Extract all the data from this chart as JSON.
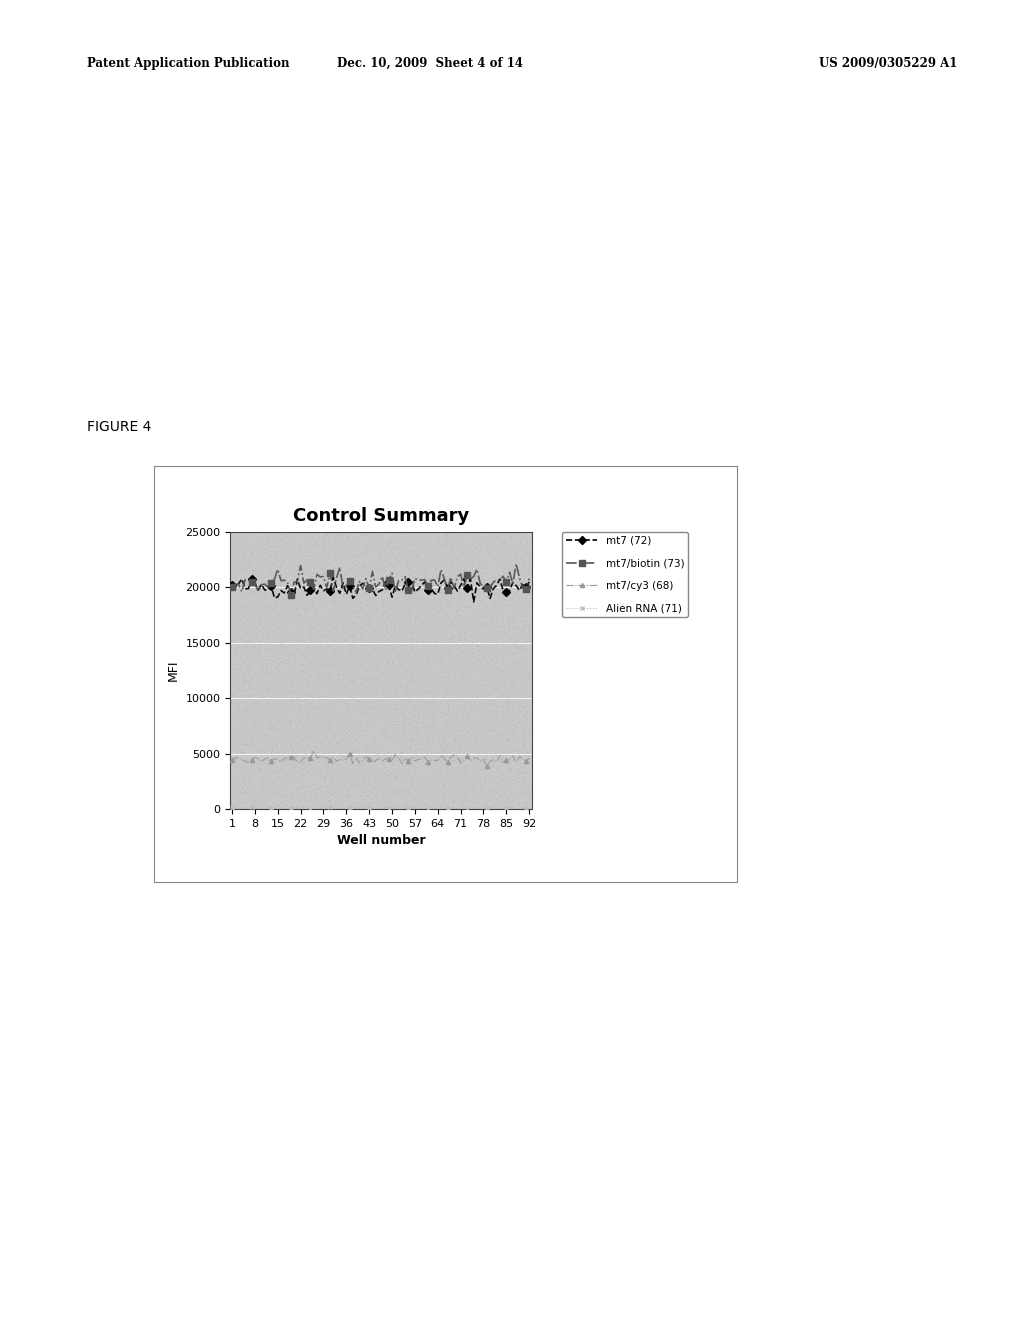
{
  "title": "Control Summary",
  "xlabel": "Well number",
  "ylabel": "MFI",
  "ylim": [
    0,
    25000
  ],
  "yticks": [
    0,
    5000,
    10000,
    15000,
    20000,
    25000
  ],
  "xtick_labels": [
    "1",
    "8",
    "15",
    "22",
    "29",
    "36",
    "43",
    "50",
    "57",
    "64",
    "71",
    "78",
    "85",
    "92"
  ],
  "header_left": "Patent Application Publication",
  "header_mid": "Dec. 10, 2009  Sheet 4 of 14",
  "header_right": "US 2009/0305229 A1",
  "figure_label": "FIGURE 4",
  "series": [
    {
      "label": "mt7 (72)",
      "mean": 20000,
      "noise": 500,
      "color": "#000000",
      "linestyle": "--",
      "marker": "D",
      "markersize": 4,
      "linewidth": 1.2
    },
    {
      "label": "mt7/biotin (73)",
      "mean": 20500,
      "noise": 600,
      "color": "#555555",
      "linestyle": "-.",
      "marker": "s",
      "markersize": 4,
      "linewidth": 1.2
    },
    {
      "label": "mt7/cy3 (68)",
      "mean": 4500,
      "noise": 200,
      "color": "#999999",
      "linestyle": "-.",
      "marker": "^",
      "markersize": 3,
      "linewidth": 0.8
    },
    {
      "label": "Alien RNA (71)",
      "mean": 100,
      "noise": 60,
      "color": "#bbbbbb",
      "linestyle": ":",
      "marker": "x",
      "markersize": 3,
      "linewidth": 0.8
    }
  ],
  "n_points": 92,
  "bg_color": "#c8c8c8",
  "chart_border_color": "#000000",
  "outer_box_color": "#f0f0f0",
  "title_fontsize": 13,
  "axis_label_fontsize": 9,
  "tick_fontsize": 8,
  "header_fontsize": 8.5,
  "figure_label_fontsize": 10
}
